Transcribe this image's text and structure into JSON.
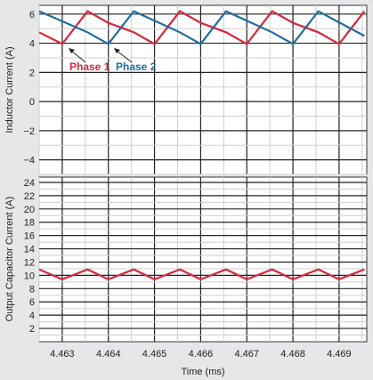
{
  "chart_data": [
    {
      "type": "line",
      "ylabel": "Inductor Current (A)",
      "ylim": [
        -5,
        6.6
      ],
      "yticks": [
        "6",
        "4",
        "2",
        "0",
        "−2",
        "−4"
      ],
      "ytick_values": [
        6,
        4,
        2,
        0,
        -2,
        -4
      ],
      "xlim": [
        4.4625,
        4.4696
      ],
      "grid": true,
      "series": [
        {
          "name": "Phase 1",
          "color": "#d6283b",
          "x": [
            4.4625,
            4.463,
            4.46355,
            4.464,
            4.46455,
            4.465,
            4.46555,
            4.466,
            4.46655,
            4.467,
            4.46755,
            4.468,
            4.46855,
            4.469,
            4.46955
          ],
          "values": [
            4.75,
            3.95,
            6.2,
            5.4,
            4.75,
            3.95,
            6.2,
            5.4,
            4.75,
            3.95,
            6.2,
            5.4,
            4.75,
            3.95,
            6.2
          ]
        },
        {
          "name": "Phase 2",
          "color": "#1f6d99",
          "x": [
            4.4625,
            4.46355,
            4.464,
            4.46455,
            4.46555,
            4.466,
            4.46655,
            4.46755,
            4.468,
            4.46855,
            4.46955
          ],
          "values": [
            6.2,
            4.75,
            3.95,
            6.2,
            4.75,
            3.95,
            6.2,
            4.75,
            3.95,
            6.2,
            4.5
          ]
        }
      ],
      "annotations": [
        {
          "text": "Phase 1",
          "color": "#d6283b"
        },
        {
          "text": "Phase 2",
          "color": "#1f6d99"
        }
      ]
    },
    {
      "type": "line",
      "ylabel": "Output Capacitor Current (A)",
      "xlabel": "Time (ms)",
      "ylim": [
        0,
        24.8
      ],
      "yticks": [
        "24",
        "22",
        "20",
        "18",
        "16",
        "14",
        "12",
        "10",
        "8",
        "6",
        "4",
        "2"
      ],
      "ytick_values": [
        24,
        22,
        20,
        18,
        16,
        14,
        12,
        10,
        8,
        6,
        4,
        2
      ],
      "xticks": [
        "4.463",
        "4.464",
        "4.465",
        "4.466",
        "4.467",
        "4.468",
        "4.469"
      ],
      "xtick_values": [
        4.463,
        4.464,
        4.465,
        4.466,
        4.467,
        4.468,
        4.469
      ],
      "xlim": [
        4.4625,
        4.4696
      ],
      "grid": true,
      "series": [
        {
          "color": "#d6283b",
          "x": [
            4.4625,
            4.463,
            4.46355,
            4.464,
            4.46455,
            4.465,
            4.46555,
            4.466,
            4.46655,
            4.467,
            4.46755,
            4.468,
            4.46855,
            4.469,
            4.46955
          ],
          "values": [
            10.9,
            9.4,
            10.9,
            9.4,
            10.9,
            9.4,
            10.9,
            9.4,
            10.9,
            9.4,
            10.9,
            9.4,
            10.9,
            9.4,
            10.9
          ]
        }
      ]
    }
  ]
}
